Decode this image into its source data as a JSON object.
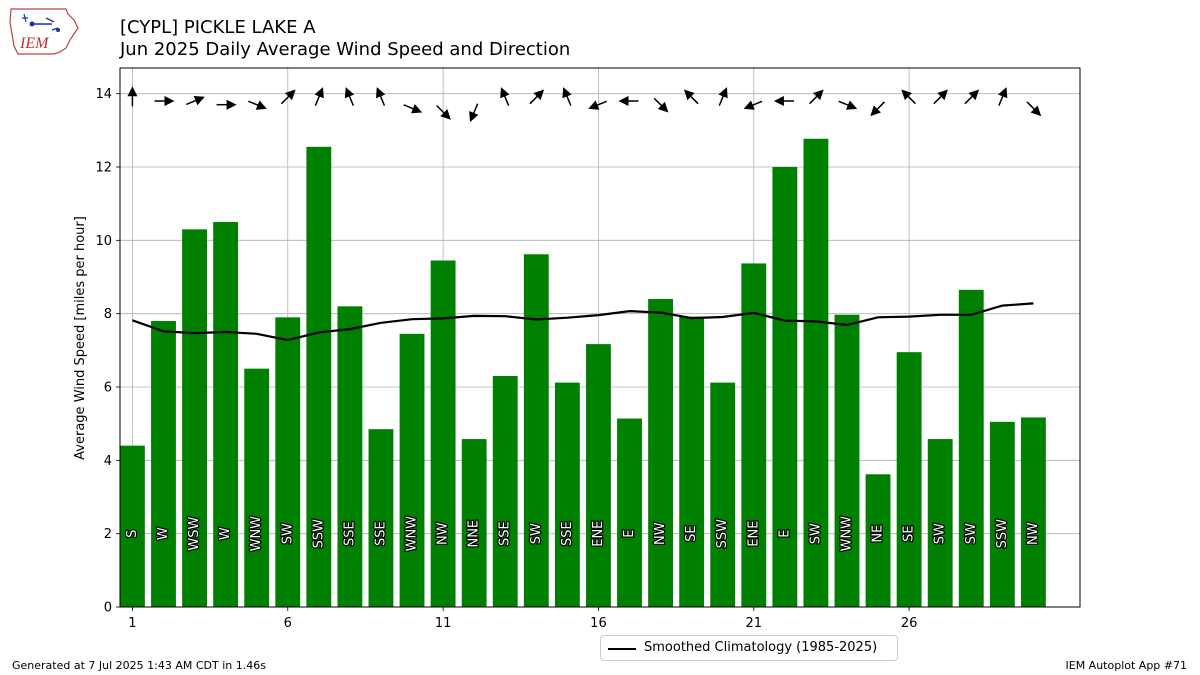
{
  "logo": {
    "text": "IEM"
  },
  "header": {
    "title": "[CYPL] PICKLE LAKE  A",
    "subtitle": "Jun 2025 Daily Average Wind Speed and Direction"
  },
  "footer": {
    "generated": "Generated at 7 Jul 2025 1:43 AM CDT in 1.46s",
    "app": "IEM Autoplot App #71"
  },
  "colors": {
    "bars": "#008000",
    "climatology": "#000000",
    "grid": "#b0b0b0"
  },
  "chart_data": {
    "type": "bar",
    "ylabel": "Average Wind Speed [miles per hour]",
    "ylim": [
      0,
      14.7
    ],
    "xlim": [
      0.6,
      31.5
    ],
    "yticks": [
      0,
      2,
      4,
      6,
      8,
      10,
      12,
      14
    ],
    "xticks": [
      1,
      6,
      11,
      16,
      21,
      26
    ],
    "grid": true,
    "legend_position": "bottom-center",
    "days": [
      1,
      2,
      3,
      4,
      5,
      6,
      7,
      8,
      9,
      10,
      11,
      12,
      13,
      14,
      15,
      16,
      17,
      18,
      19,
      20,
      21,
      22,
      23,
      24,
      25,
      26,
      27,
      28,
      29,
      30
    ],
    "speed": [
      4.4,
      7.8,
      10.3,
      10.5,
      6.5,
      7.9,
      12.55,
      8.2,
      4.85,
      7.45,
      9.45,
      4.58,
      6.3,
      9.62,
      6.12,
      7.17,
      5.14,
      8.4,
      7.92,
      6.12,
      9.37,
      12.0,
      12.77,
      7.97,
      3.62,
      6.95,
      4.58,
      8.65,
      5.05,
      5.17
    ],
    "direction": [
      "S",
      "W",
      "WSW",
      "W",
      "WNW",
      "SW",
      "SSW",
      "SSE",
      "SSE",
      "WNW",
      "NW",
      "NNE",
      "SSE",
      "SW",
      "SSE",
      "ENE",
      "E",
      "NW",
      "SE",
      "SSW",
      "ENE",
      "E",
      "SW",
      "WNW",
      "NE",
      "SE",
      "SW",
      "SW",
      "SSW",
      "NW"
    ],
    "arrow_y": [
      13.9,
      13.8,
      13.8,
      13.7,
      13.7,
      13.9,
      13.9,
      13.9,
      13.9,
      13.6,
      13.5,
      13.5,
      13.9,
      13.9,
      13.9,
      13.7,
      13.8,
      13.7,
      13.9,
      13.9,
      13.7,
      13.8,
      13.9,
      13.7,
      13.6,
      13.9,
      13.9,
      13.9,
      13.9,
      13.6
    ],
    "series": [
      {
        "name": "Smoothed Climatology (1985-2025)",
        "values": [
          7.82,
          7.52,
          7.47,
          7.5,
          7.45,
          7.28,
          7.49,
          7.58,
          7.75,
          7.85,
          7.87,
          7.94,
          7.93,
          7.84,
          7.89,
          7.96,
          8.07,
          8.03,
          7.88,
          7.91,
          8.02,
          7.81,
          7.79,
          7.69,
          7.9,
          7.92,
          7.97,
          7.97,
          8.22,
          8.28
        ]
      }
    ]
  }
}
